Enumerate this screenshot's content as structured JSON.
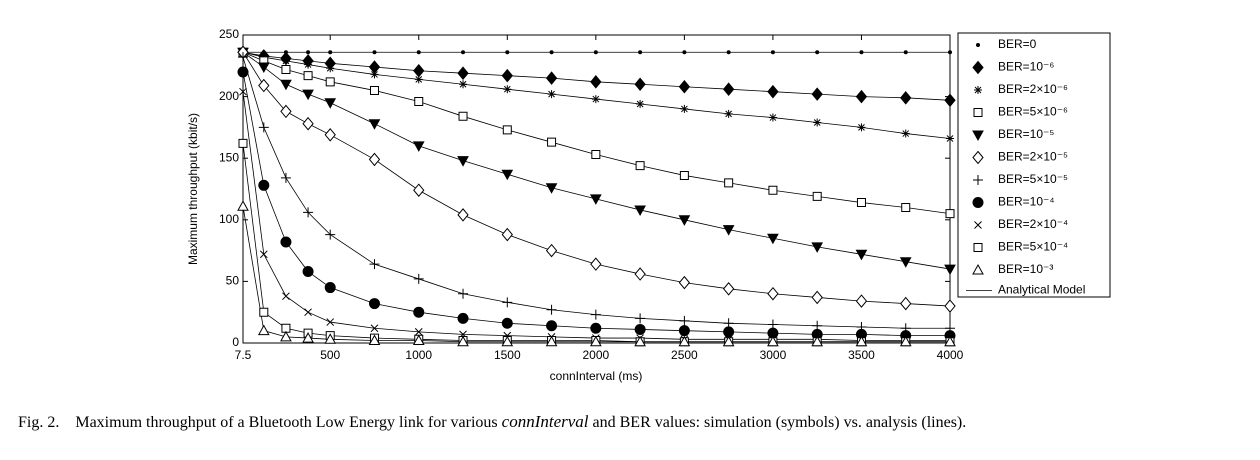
{
  "chart_data": {
    "type": "line",
    "xlabel": "connInterval (ms)",
    "ylabel": "Maximum throughput (kbit/s)",
    "x": [
      7.5,
      125,
      250,
      375,
      500,
      750,
      1000,
      1250,
      1500,
      1750,
      2000,
      2250,
      2500,
      2750,
      3000,
      3250,
      3500,
      3750,
      4000
    ],
    "xlim": [
      7.5,
      4000
    ],
    "xticks": [
      7.5,
      500,
      1000,
      1500,
      2000,
      2500,
      3000,
      3500,
      4000
    ],
    "ylim": [
      0,
      250
    ],
    "yticks": [
      0,
      50,
      100,
      150,
      200,
      250
    ],
    "legend": "outside-right",
    "model_name": "Analytical Model",
    "series": [
      {
        "name": "BER=0",
        "marker": "dot",
        "color": "#000000",
        "values": [
          236,
          236,
          236,
          236,
          236,
          236,
          236,
          236,
          236,
          236,
          236,
          236,
          236,
          236,
          236,
          236,
          236,
          236,
          236
        ]
      },
      {
        "name": "BER=10⁻⁶",
        "marker": "diamond-filled",
        "color": "#000000",
        "values": [
          236,
          233,
          231,
          229,
          227,
          224,
          221,
          219,
          217,
          215,
          212,
          210,
          208,
          206,
          204,
          202,
          200,
          199,
          197
        ]
      },
      {
        "name": "BER=2×10⁻⁶",
        "marker": "asterisk",
        "color": "#000000",
        "values": [
          236,
          232,
          229,
          226,
          223,
          218,
          214,
          210,
          206,
          202,
          198,
          194,
          190,
          186,
          183,
          179,
          175,
          170,
          166
        ]
      },
      {
        "name": "BER=5×10⁻⁶",
        "marker": "square-open",
        "color": "#000000",
        "values": [
          236,
          229,
          222,
          217,
          212,
          205,
          196,
          184,
          173,
          163,
          153,
          144,
          136,
          130,
          124,
          119,
          114,
          110,
          105
        ]
      },
      {
        "name": "BER=10⁻⁵",
        "marker": "triangle-down-filled",
        "color": "#000000",
        "values": [
          236,
          224,
          210,
          202,
          195,
          178,
          160,
          148,
          137,
          126,
          117,
          108,
          100,
          92,
          85,
          78,
          72,
          66,
          60
        ]
      },
      {
        "name": "BER=2×10⁻⁵",
        "marker": "diamond-open",
        "color": "#000000",
        "values": [
          236,
          209,
          188,
          178,
          169,
          149,
          124,
          104,
          88,
          75,
          64,
          56,
          49,
          44,
          40,
          37,
          34,
          32,
          30
        ]
      },
      {
        "name": "BER=5×10⁻⁵",
        "marker": "plus",
        "color": "#000000",
        "values": [
          232,
          175,
          134,
          106,
          88,
          64,
          52,
          40,
          33,
          27,
          23,
          20,
          18,
          16,
          15,
          14,
          13,
          12,
          12
        ]
      },
      {
        "name": "BER=10⁻⁴",
        "marker": "circle-filled",
        "color": "#000000",
        "values": [
          220,
          128,
          82,
          58,
          45,
          32,
          25,
          20,
          16,
          14,
          12,
          11,
          10,
          9,
          8,
          7,
          7,
          6,
          6
        ]
      },
      {
        "name": "BER=2×10⁻⁴",
        "marker": "x",
        "color": "#000000",
        "values": [
          204,
          72,
          38,
          25,
          17,
          12,
          9,
          7,
          6,
          5,
          4,
          4,
          3,
          3,
          3,
          3,
          2,
          2,
          2
        ]
      },
      {
        "name": "BER=5×10⁻⁴",
        "marker": "square-open",
        "color": "#000000",
        "values": [
          162,
          25,
          12,
          8,
          6,
          4,
          3,
          2,
          2,
          2,
          2,
          1,
          1,
          1,
          1,
          1,
          1,
          1,
          1
        ]
      },
      {
        "name": "BER=10⁻³",
        "marker": "triangle-up-open",
        "color": "#000000",
        "values": [
          111,
          10,
          5,
          4,
          3,
          2,
          2,
          1,
          1,
          1,
          1,
          1,
          1,
          1,
          1,
          1,
          1,
          1,
          1
        ]
      }
    ]
  },
  "caption": {
    "label": "Fig. 2.",
    "text_before": "Maximum throughput of a Bluetooth Low Energy link for various",
    "italic": "connInterval",
    "text_after": "and BER values: simulation (symbols) vs. analysis (lines)."
  }
}
